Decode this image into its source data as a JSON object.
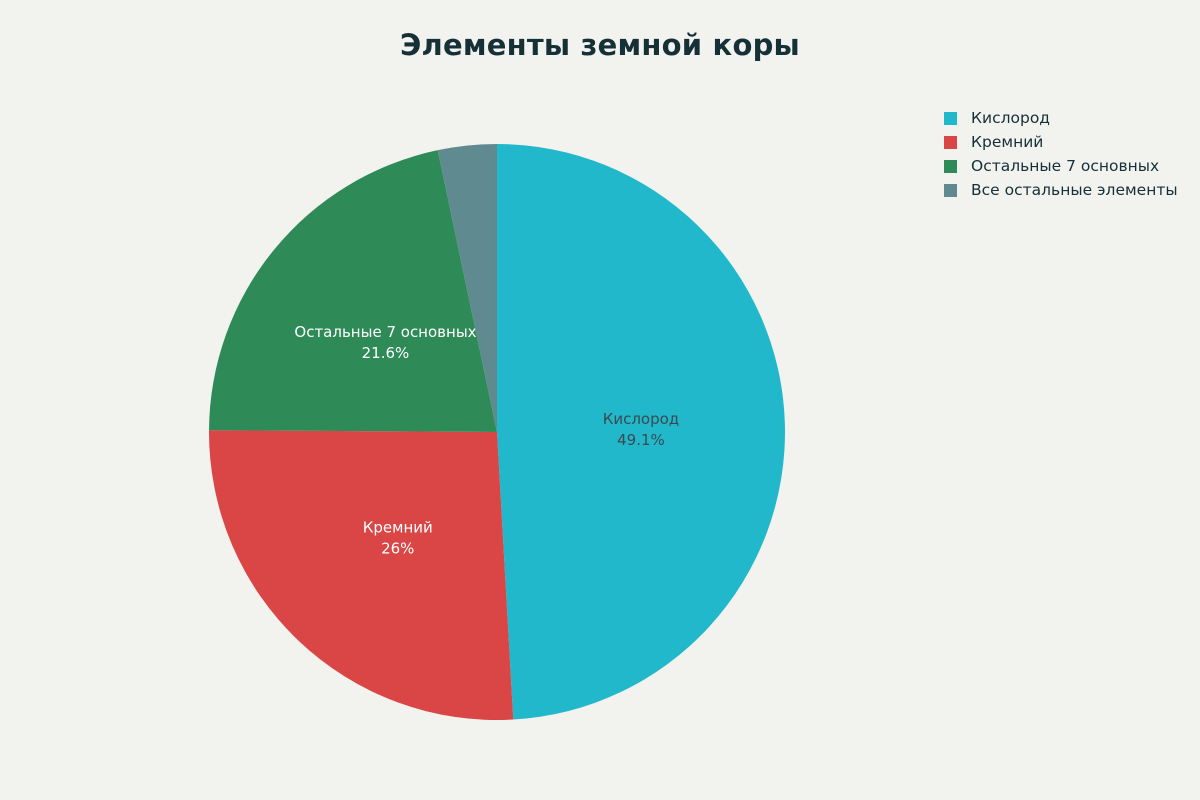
{
  "chart_data": {
    "type": "pie",
    "title": "Элементы земной коры",
    "categories": [
      "Кислород",
      "Кремний",
      "Остальные 7 основных",
      "Все остальные элементы"
    ],
    "values": [
      49.1,
      26,
      21.6,
      3.3
    ],
    "value_labels": [
      "49.1%",
      "26%",
      "21.6%",
      ""
    ],
    "colors": [
      "#22b8cc",
      "#da4646",
      "#2e8b57",
      "#5e8a90"
    ],
    "label_colors": [
      "#3a4a4e",
      "#ffffff",
      "#ffffff",
      "#ffffff"
    ],
    "start": "12 o'clock",
    "direction": "clockwise",
    "legend": {
      "position": "top-right",
      "entries": [
        "Кислород",
        "Кремний",
        "Остальные 7 основных",
        "Все остальные элементы"
      ]
    }
  }
}
